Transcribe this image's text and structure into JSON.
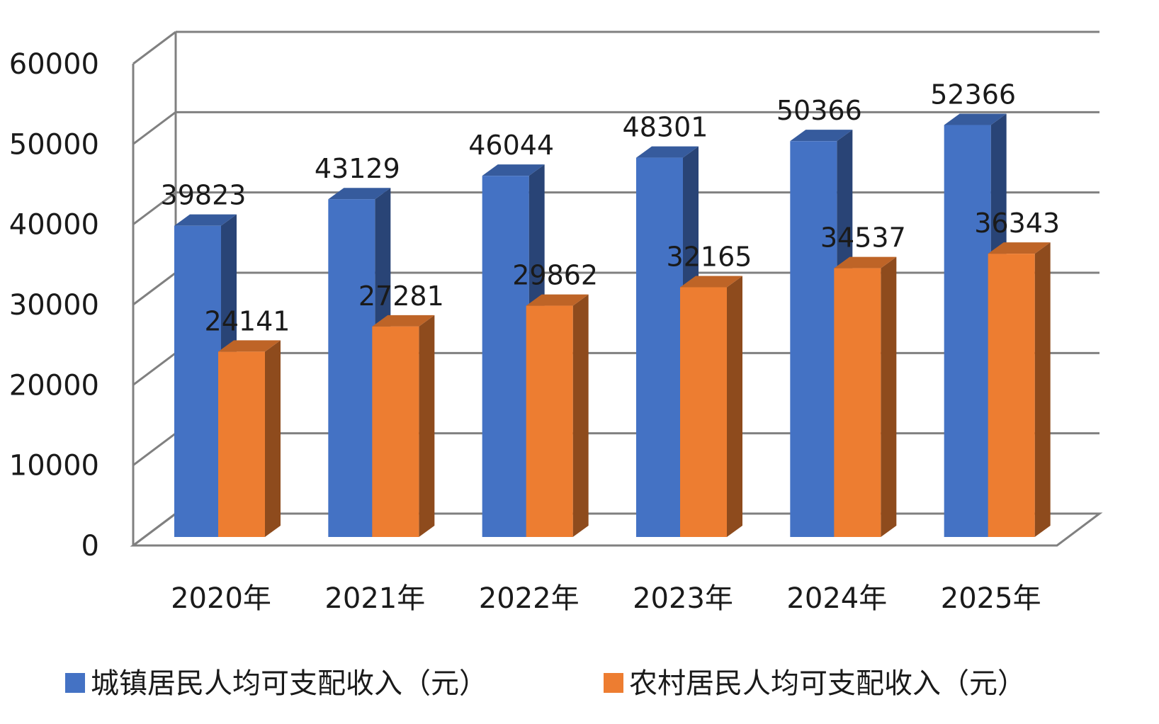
{
  "chart_data": {
    "type": "bar",
    "style": "3d-clustered-column",
    "categories": [
      "2020年",
      "2021年",
      "2022年",
      "2023年",
      "2024年",
      "2025年"
    ],
    "series": [
      {
        "name": "城镇居民人均可支配收入（元）",
        "color": "#4472C4",
        "values": [
          39823,
          43129,
          46044,
          48301,
          50366,
          52366
        ]
      },
      {
        "name": "农村居民人均可支配收入（元）",
        "color": "#ED7D31",
        "values": [
          24141,
          27281,
          29862,
          32165,
          34537,
          36343
        ]
      }
    ],
    "y_ticks": [
      "0",
      "10000",
      "20000",
      "30000",
      "40000",
      "50000",
      "60000"
    ],
    "ylim": [
      0,
      60000
    ],
    "grid": true,
    "legend_position": "bottom",
    "data_labels": true
  }
}
